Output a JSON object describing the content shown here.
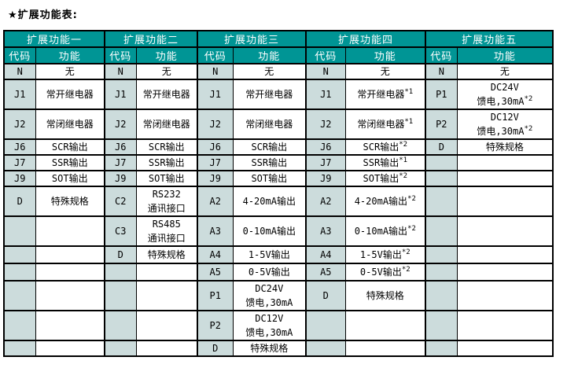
{
  "title": "★扩展功能表:",
  "colors": {
    "header_bg": "#009595",
    "header_text": "#ffffff",
    "code_cell_bg": "#ccdcdc",
    "func_cell_bg": "#ffffff",
    "border": "#000000"
  },
  "table": {
    "groups": [
      "扩展功能一",
      "扩展功能二",
      "扩展功能三",
      "扩展功能四",
      "扩展功能五"
    ],
    "col_headers": {
      "code": "代码",
      "func": "功能"
    },
    "rows": [
      {
        "cells": [
          {
            "code": "N",
            "func": [
              {
                "t": "无"
              }
            ]
          },
          {
            "code": "N",
            "func": [
              {
                "t": "无"
              }
            ]
          },
          {
            "code": "N",
            "func": [
              {
                "t": "无"
              }
            ]
          },
          {
            "code": "N",
            "func": [
              {
                "t": "无"
              }
            ]
          },
          {
            "code": "N",
            "func": [
              {
                "t": "无"
              }
            ]
          }
        ]
      },
      {
        "cells": [
          {
            "code": "J1",
            "func": [
              {
                "t": "常开继电器"
              }
            ]
          },
          {
            "code": "J1",
            "func": [
              {
                "t": "常开继电器"
              }
            ]
          },
          {
            "code": "J1",
            "func": [
              {
                "t": "常开继电器"
              }
            ]
          },
          {
            "code": "J1",
            "func": [
              {
                "t": "常开继电器",
                "sup": "*1"
              }
            ]
          },
          {
            "code": "P1",
            "func": [
              {
                "t": "DC24V"
              },
              {
                "t": "馈电,30mA",
                "sup": "*2"
              }
            ]
          }
        ]
      },
      {
        "cells": [
          {
            "code": "J2",
            "func": [
              {
                "t": "常闭继电器"
              }
            ]
          },
          {
            "code": "J2",
            "func": [
              {
                "t": "常闭继电器"
              }
            ]
          },
          {
            "code": "J2",
            "func": [
              {
                "t": "常闭继电器"
              }
            ]
          },
          {
            "code": "J2",
            "func": [
              {
                "t": "常闭继电器",
                "sup": "*1"
              }
            ]
          },
          {
            "code": "P2",
            "func": [
              {
                "t": "DC12V"
              },
              {
                "t": "馈电,30mA",
                "sup": "*2"
              }
            ]
          }
        ]
      },
      {
        "cells": [
          {
            "code": "J6",
            "func": [
              {
                "t": "SCR输出"
              }
            ]
          },
          {
            "code": "J6",
            "func": [
              {
                "t": "SCR输出"
              }
            ]
          },
          {
            "code": "J6",
            "func": [
              {
                "t": "SCR输出"
              }
            ]
          },
          {
            "code": "J6",
            "func": [
              {
                "t": "SCR输出",
                "sup": "*2"
              }
            ]
          },
          {
            "code": "D",
            "func": [
              {
                "t": "特殊规格"
              }
            ]
          }
        ]
      },
      {
        "cells": [
          {
            "code": "J7",
            "func": [
              {
                "t": "SSR输出"
              }
            ]
          },
          {
            "code": "J7",
            "func": [
              {
                "t": "SSR输出"
              }
            ]
          },
          {
            "code": "J7",
            "func": [
              {
                "t": "SSR输出"
              }
            ]
          },
          {
            "code": "J7",
            "func": [
              {
                "t": "SSR输出",
                "sup": "*1"
              }
            ]
          },
          {
            "code": "",
            "func": []
          }
        ]
      },
      {
        "cells": [
          {
            "code": "J9",
            "func": [
              {
                "t": "SOT输出"
              }
            ]
          },
          {
            "code": "J9",
            "func": [
              {
                "t": "SOT输出"
              }
            ]
          },
          {
            "code": "J9",
            "func": [
              {
                "t": "SOT输出"
              }
            ]
          },
          {
            "code": "J9",
            "func": [
              {
                "t": "SOT输出",
                "sup": "*2"
              }
            ]
          },
          {
            "code": "",
            "func": []
          }
        ]
      },
      {
        "cells": [
          {
            "code": "D",
            "func": [
              {
                "t": "特殊规格"
              }
            ]
          },
          {
            "code": "C2",
            "func": [
              {
                "t": "RS232"
              },
              {
                "t": "通讯接口"
              }
            ]
          },
          {
            "code": "A2",
            "func": [
              {
                "t": "4-20mA输出"
              }
            ]
          },
          {
            "code": "A2",
            "func": [
              {
                "t": "4-20mA输出",
                "sup": "*2"
              }
            ]
          },
          {
            "code": "",
            "func": []
          }
        ]
      },
      {
        "cells": [
          {
            "code": "",
            "func": []
          },
          {
            "code": "C3",
            "func": [
              {
                "t": "RS485"
              },
              {
                "t": "通讯接口"
              }
            ]
          },
          {
            "code": "A3",
            "func": [
              {
                "t": "0-10mA输出"
              }
            ]
          },
          {
            "code": "A3",
            "func": [
              {
                "t": "0-10mA输出",
                "sup": "*2"
              }
            ]
          },
          {
            "code": "",
            "func": []
          }
        ]
      },
      {
        "cells": [
          {
            "code": "",
            "func": []
          },
          {
            "code": "D",
            "func": [
              {
                "t": "特殊规格"
              }
            ]
          },
          {
            "code": "A4",
            "func": [
              {
                "t": "1-5V输出"
              }
            ]
          },
          {
            "code": "A4",
            "func": [
              {
                "t": "1-5V输出",
                "sup": "*2"
              }
            ]
          },
          {
            "code": "",
            "func": []
          }
        ]
      },
      {
        "cells": [
          {
            "code": "",
            "func": []
          },
          {
            "code": "",
            "func": []
          },
          {
            "code": "A5",
            "func": [
              {
                "t": "0-5V输出"
              }
            ]
          },
          {
            "code": "A5",
            "func": [
              {
                "t": "0-5V输出",
                "sup": "*2"
              }
            ]
          },
          {
            "code": "",
            "func": []
          }
        ]
      },
      {
        "cells": [
          {
            "code": "",
            "func": []
          },
          {
            "code": "",
            "func": []
          },
          {
            "code": "P1",
            "func": [
              {
                "t": "DC24V"
              },
              {
                "t": "馈电,30mA"
              }
            ]
          },
          {
            "code": "D",
            "func": [
              {
                "t": "特殊规格"
              }
            ]
          },
          {
            "code": "",
            "func": []
          }
        ]
      },
      {
        "cells": [
          {
            "code": "",
            "func": []
          },
          {
            "code": "",
            "func": []
          },
          {
            "code": "P2",
            "func": [
              {
                "t": "DC12V"
              },
              {
                "t": "馈电,30mA"
              }
            ]
          },
          {
            "code": "",
            "func": []
          },
          {
            "code": "",
            "func": []
          }
        ]
      },
      {
        "cells": [
          {
            "code": "",
            "func": []
          },
          {
            "code": "",
            "func": []
          },
          {
            "code": "D",
            "func": [
              {
                "t": "特殊规格"
              }
            ]
          },
          {
            "code": "",
            "func": []
          },
          {
            "code": "",
            "func": []
          }
        ]
      }
    ]
  }
}
